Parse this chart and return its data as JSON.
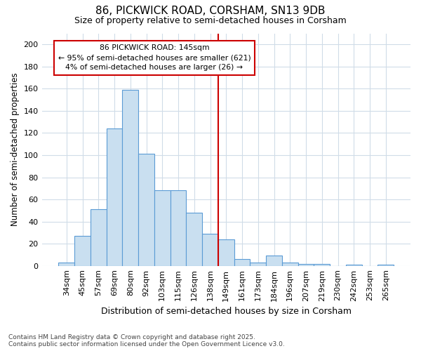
{
  "title_line1": "86, PICKWICK ROAD, CORSHAM, SN13 9DB",
  "title_line2": "Size of property relative to semi-detached houses in Corsham",
  "xlabel": "Distribution of semi-detached houses by size in Corsham",
  "ylabel": "Number of semi-detached properties",
  "categories": [
    "34sqm",
    "45sqm",
    "57sqm",
    "69sqm",
    "80sqm",
    "92sqm",
    "103sqm",
    "115sqm",
    "126sqm",
    "138sqm",
    "149sqm",
    "161sqm",
    "173sqm",
    "184sqm",
    "196sqm",
    "207sqm",
    "219sqm",
    "230sqm",
    "242sqm",
    "253sqm",
    "265sqm"
  ],
  "values": [
    3,
    27,
    51,
    124,
    159,
    101,
    68,
    68,
    48,
    29,
    24,
    6,
    3,
    9,
    3,
    2,
    2,
    0,
    1,
    0,
    1
  ],
  "bar_color": "#c9dff0",
  "bar_edge_color": "#5b9bd5",
  "annotation_title": "86 PICKWICK ROAD: 145sqm",
  "annotation_line2": "← 95% of semi-detached houses are smaller (621)",
  "annotation_line3": "4% of semi-detached houses are larger (26) →",
  "annotation_box_color": "#cc0000",
  "ylim": [
    0,
    210
  ],
  "yticks": [
    0,
    20,
    40,
    60,
    80,
    100,
    120,
    140,
    160,
    180,
    200
  ],
  "bg_color": "#ffffff",
  "grid_color": "#d0dce8",
  "footer_line1": "Contains HM Land Registry data © Crown copyright and database right 2025.",
  "footer_line2": "Contains public sector information licensed under the Open Government Licence v3.0."
}
